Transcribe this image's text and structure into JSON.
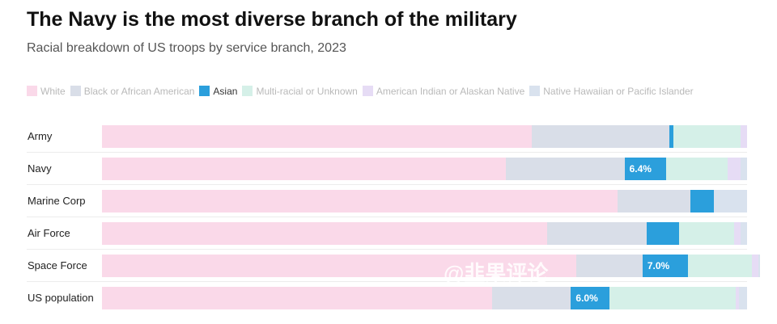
{
  "title": "The Navy is the most diverse branch of the military",
  "subtitle": "Racial breakdown of US troops by service branch, 2023",
  "watermark": "@韭果评论",
  "colors": {
    "White": "#fad9e9",
    "Black or African American": "#d9dee8",
    "Asian": "#2b9fdc",
    "Multi-racial or Unknown": "#d5f0e8",
    "American Indian or Alaskan Native": "#e6dcf5",
    "Native Hawaiian or Pacific Islander": "#d9e2ee"
  },
  "legend": [
    {
      "label": "White",
      "active": false
    },
    {
      "label": "Black or African American",
      "active": false
    },
    {
      "label": "Asian",
      "active": true
    },
    {
      "label": "Multi-racial or Unknown",
      "active": false
    },
    {
      "label": "American Indian or Alaskan Native",
      "active": false
    },
    {
      "label": "Native Hawaiian or Pacific Islander",
      "active": false
    }
  ],
  "chart_data": {
    "type": "bar",
    "orientation": "horizontal",
    "stacked": true,
    "unit": "%",
    "highlighted_series": "Asian",
    "categories": [
      "Army",
      "Navy",
      "Marine Corp",
      "Air Force",
      "Space Force",
      "US population"
    ],
    "series": [
      {
        "name": "White",
        "values": [
          66.6,
          62.6,
          79.9,
          69.0,
          73.5,
          60.5
        ]
      },
      {
        "name": "Black or African American",
        "values": [
          21.4,
          18.4,
          11.3,
          15.5,
          10.3,
          12.2
        ]
      },
      {
        "name": "Asian",
        "values": [
          0.6,
          6.4,
          3.6,
          5.0,
          7.0,
          6.0
        ]
      },
      {
        "name": "Multi-racial or Unknown",
        "values": [
          10.4,
          9.6,
          0.0,
          8.5,
          10.0,
          19.5
        ]
      },
      {
        "name": "American Indian or Alaskan Native",
        "values": [
          1.0,
          2.0,
          0.0,
          1.0,
          1.0,
          0.5
        ]
      },
      {
        "name": "Native Hawaiian or Pacific Islander",
        "values": [
          0.0,
          1.0,
          5.2,
          1.0,
          0.2,
          1.3
        ]
      }
    ],
    "data_labels": [
      "0.6%",
      "6.4%",
      "3.6%",
      "5.0%",
      "7.0%",
      "6.0%"
    ],
    "xlim": [
      0,
      100
    ]
  }
}
